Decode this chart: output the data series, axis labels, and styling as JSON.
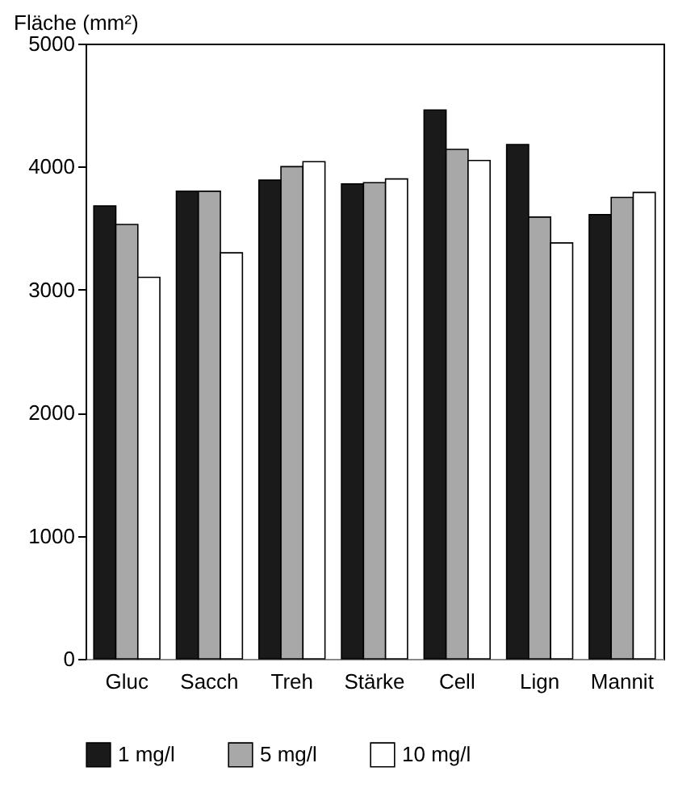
{
  "chart_data": {
    "type": "bar",
    "ylabel": "Fläche (mm²)",
    "categories": [
      "Gluc",
      "Sacch",
      "Treh",
      "Stärke",
      "Cell",
      "Lign",
      "Mannit"
    ],
    "series": [
      {
        "name": "1 mg/l",
        "color": "#1a1a1a",
        "values": [
          3680,
          3800,
          3890,
          3860,
          4460,
          4180,
          3610
        ]
      },
      {
        "name": "5 mg/l",
        "color": "#a8a8a8",
        "values": [
          3530,
          3800,
          4000,
          3870,
          4140,
          3590,
          3750
        ]
      },
      {
        "name": "10 mg/l",
        "color": "#ffffff",
        "values": [
          3100,
          3300,
          4040,
          3900,
          4050,
          3380,
          3790
        ]
      }
    ],
    "ylim": [
      0,
      5000
    ],
    "yticks": [
      0,
      1000,
      2000,
      3000,
      4000,
      5000
    ],
    "grid": false,
    "legend": "bottom"
  }
}
